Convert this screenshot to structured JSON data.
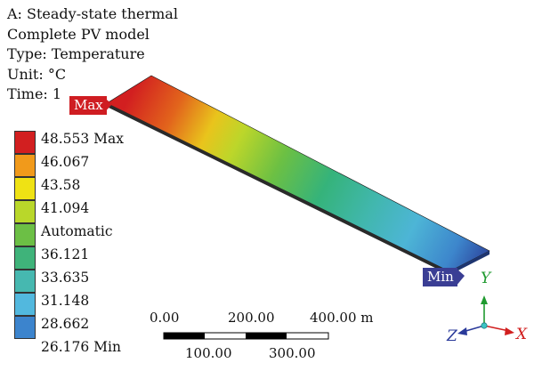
{
  "header": {
    "analysis": "A: Steady-state thermal",
    "model": "Complete PV model",
    "type": "Type: Temperature",
    "unit": "Unit: °C",
    "time": "Time: 1"
  },
  "legend": {
    "levels": [
      {
        "label": "48.553 Max",
        "color": "#d21f20"
      },
      {
        "label": "46.067",
        "color": "#f19a1b"
      },
      {
        "label": "43.58",
        "color": "#efe214"
      },
      {
        "label": "41.094",
        "color": "#b9d72a"
      },
      {
        "label": "Automatic",
        "color": "#6cbf45"
      },
      {
        "label": "36.121",
        "color": "#3fb37a"
      },
      {
        "label": "33.635",
        "color": "#46b8b0"
      },
      {
        "label": "31.148",
        "color": "#52b8de"
      },
      {
        "label": "28.662",
        "color": "#3c84cd"
      },
      {
        "label": "26.176 Min",
        "color": "#2b3d93"
      }
    ]
  },
  "probes": {
    "max_label": "Max",
    "min_label": "Min"
  },
  "scalebar": {
    "top_labels": [
      "0.00",
      "200.00",
      "400.00 m"
    ],
    "bottom_labels": [
      "100.00",
      "300.00"
    ]
  },
  "triad": {
    "x_label": "X",
    "y_label": "Y",
    "z_label": "Z",
    "x_color": "#d11f1f",
    "y_color": "#1f9a2f",
    "z_color": "#2a3a9a"
  }
}
